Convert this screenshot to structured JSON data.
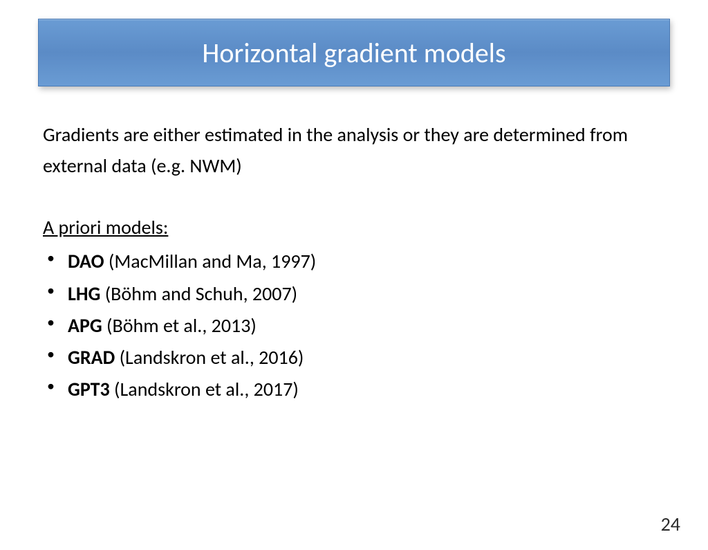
{
  "title": "Horizontal gradient models",
  "intro": "Gradients are either estimated in the analysis or they are determined from external data (e.g. NWM)",
  "subhead": "A priori models:",
  "items": [
    {
      "name": "DAO",
      "ref": " (MacMillan and Ma, 1997)"
    },
    {
      "name": "LHG",
      "ref": " (Böhm and Schuh, 2007)"
    },
    {
      "name": "APG",
      "ref": " (Böhm et al., 2013)"
    },
    {
      "name": "GRAD",
      "ref": " (Landskron et al., 2016)"
    },
    {
      "name": "GPT3",
      "ref": " (Landskron et al., 2017)"
    }
  ],
  "page_number": "24",
  "colors": {
    "title_bg": "#6a9cd4",
    "title_border": "#4a7ab5",
    "title_text": "#ffffff",
    "body_text": "#000000",
    "page_bg": "#ffffff"
  },
  "fonts": {
    "title_size_pt": 40,
    "body_size_pt": 28,
    "family": "Calibri"
  }
}
